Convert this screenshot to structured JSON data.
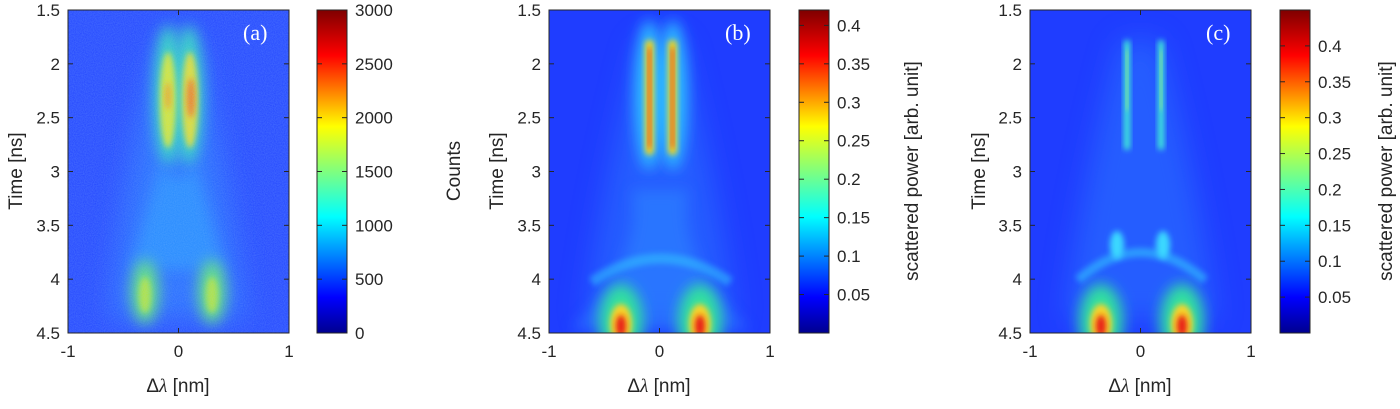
{
  "colors": {
    "colormap": "jet",
    "jet_stops": [
      "#00008f",
      "#0000ff",
      "#007fff",
      "#00ffff",
      "#7fff7f",
      "#ffff00",
      "#ff7f00",
      "#ff0000",
      "#7f0000"
    ],
    "background_low": "#1a3cff",
    "text": "#262626"
  },
  "chart_data": [
    {
      "type": "heatmap",
      "panel_label": "(a)",
      "xlabel_prefix": "Δ",
      "xlabel_symbol": "λ",
      "xlabel_unit": " [nm]",
      "ylabel": "Time [ns]",
      "xlim": [
        -1,
        1
      ],
      "ylim": [
        4.5,
        1.5
      ],
      "xticks": [
        "-1",
        "0",
        "1"
      ],
      "yticks": [
        "1.5",
        "2",
        "2.5",
        "3",
        "3.5",
        "4",
        "4.5"
      ],
      "colorbar": {
        "label": "Counts",
        "ticks": [
          "0",
          "500",
          "1000",
          "1500",
          "2000",
          "2500",
          "3000"
        ],
        "range": [
          0,
          3000
        ]
      },
      "structure": {
        "upper_lobes": {
          "x": [
            -0.1,
            0.1
          ],
          "t_start": 1.75,
          "t_end": 2.9,
          "peak_value": 3000
        },
        "lower_lobes": {
          "x": [
            -0.3,
            0.3
          ],
          "t_start": 3.8,
          "t_end": 4.5,
          "peak_value": 2000
        },
        "noisy": true
      }
    },
    {
      "type": "heatmap",
      "panel_label": "(b)",
      "xlabel_prefix": "Δ",
      "xlabel_symbol": "λ",
      "xlabel_unit": " [nm]",
      "ylabel": "Time [ns]",
      "xlim": [
        -1,
        1
      ],
      "ylim": [
        4.5,
        1.5
      ],
      "xticks": [
        "-1",
        "0",
        "1"
      ],
      "yticks": [
        "1.5",
        "2",
        "2.5",
        "3",
        "3.5",
        "4",
        "4.5"
      ],
      "colorbar": {
        "label": "scattered power [arb. unit]",
        "ticks": [
          "0.05",
          "0.1",
          "0.15",
          "0.2",
          "0.25",
          "0.3",
          "0.35",
          "0.4"
        ],
        "range": [
          0,
          0.42
        ]
      },
      "structure": {
        "upper_lobes": {
          "x": [
            -0.1,
            0.1
          ],
          "t_start": 1.75,
          "t_end": 2.9,
          "peak_value": 0.42
        },
        "lower_lobes": {
          "x": [
            -0.37,
            0.37
          ],
          "t_start": 4.1,
          "t_end": 4.5,
          "peak_value": 0.42
        },
        "noisy": false
      }
    },
    {
      "type": "heatmap",
      "panel_label": "(c)",
      "xlabel_prefix": "Δ",
      "xlabel_symbol": "λ",
      "xlabel_unit": " [nm]",
      "ylabel": "Time [ns]",
      "xlim": [
        -1,
        1
      ],
      "ylim": [
        4.5,
        1.5
      ],
      "xticks": [
        "-1",
        "0",
        "1"
      ],
      "yticks": [
        "1.5",
        "2",
        "2.5",
        "3",
        "3.5",
        "4",
        "4.5"
      ],
      "colorbar": {
        "label": "scattered power [arb. unit]",
        "ticks": [
          "0.05",
          "0.1",
          "0.15",
          "0.2",
          "0.25",
          "0.3",
          "0.35",
          "0.4"
        ],
        "range": [
          0,
          0.45
        ]
      },
      "structure": {
        "upper_lobes": {
          "x": [
            -0.15,
            0.15
          ],
          "t_start": 1.75,
          "t_end": 2.8,
          "peak_value": 0.15
        },
        "lower_lobes": {
          "x": [
            -0.37,
            0.37
          ],
          "t_start": 4.1,
          "t_end": 4.5,
          "peak_value": 0.45
        },
        "noisy": false
      }
    }
  ]
}
